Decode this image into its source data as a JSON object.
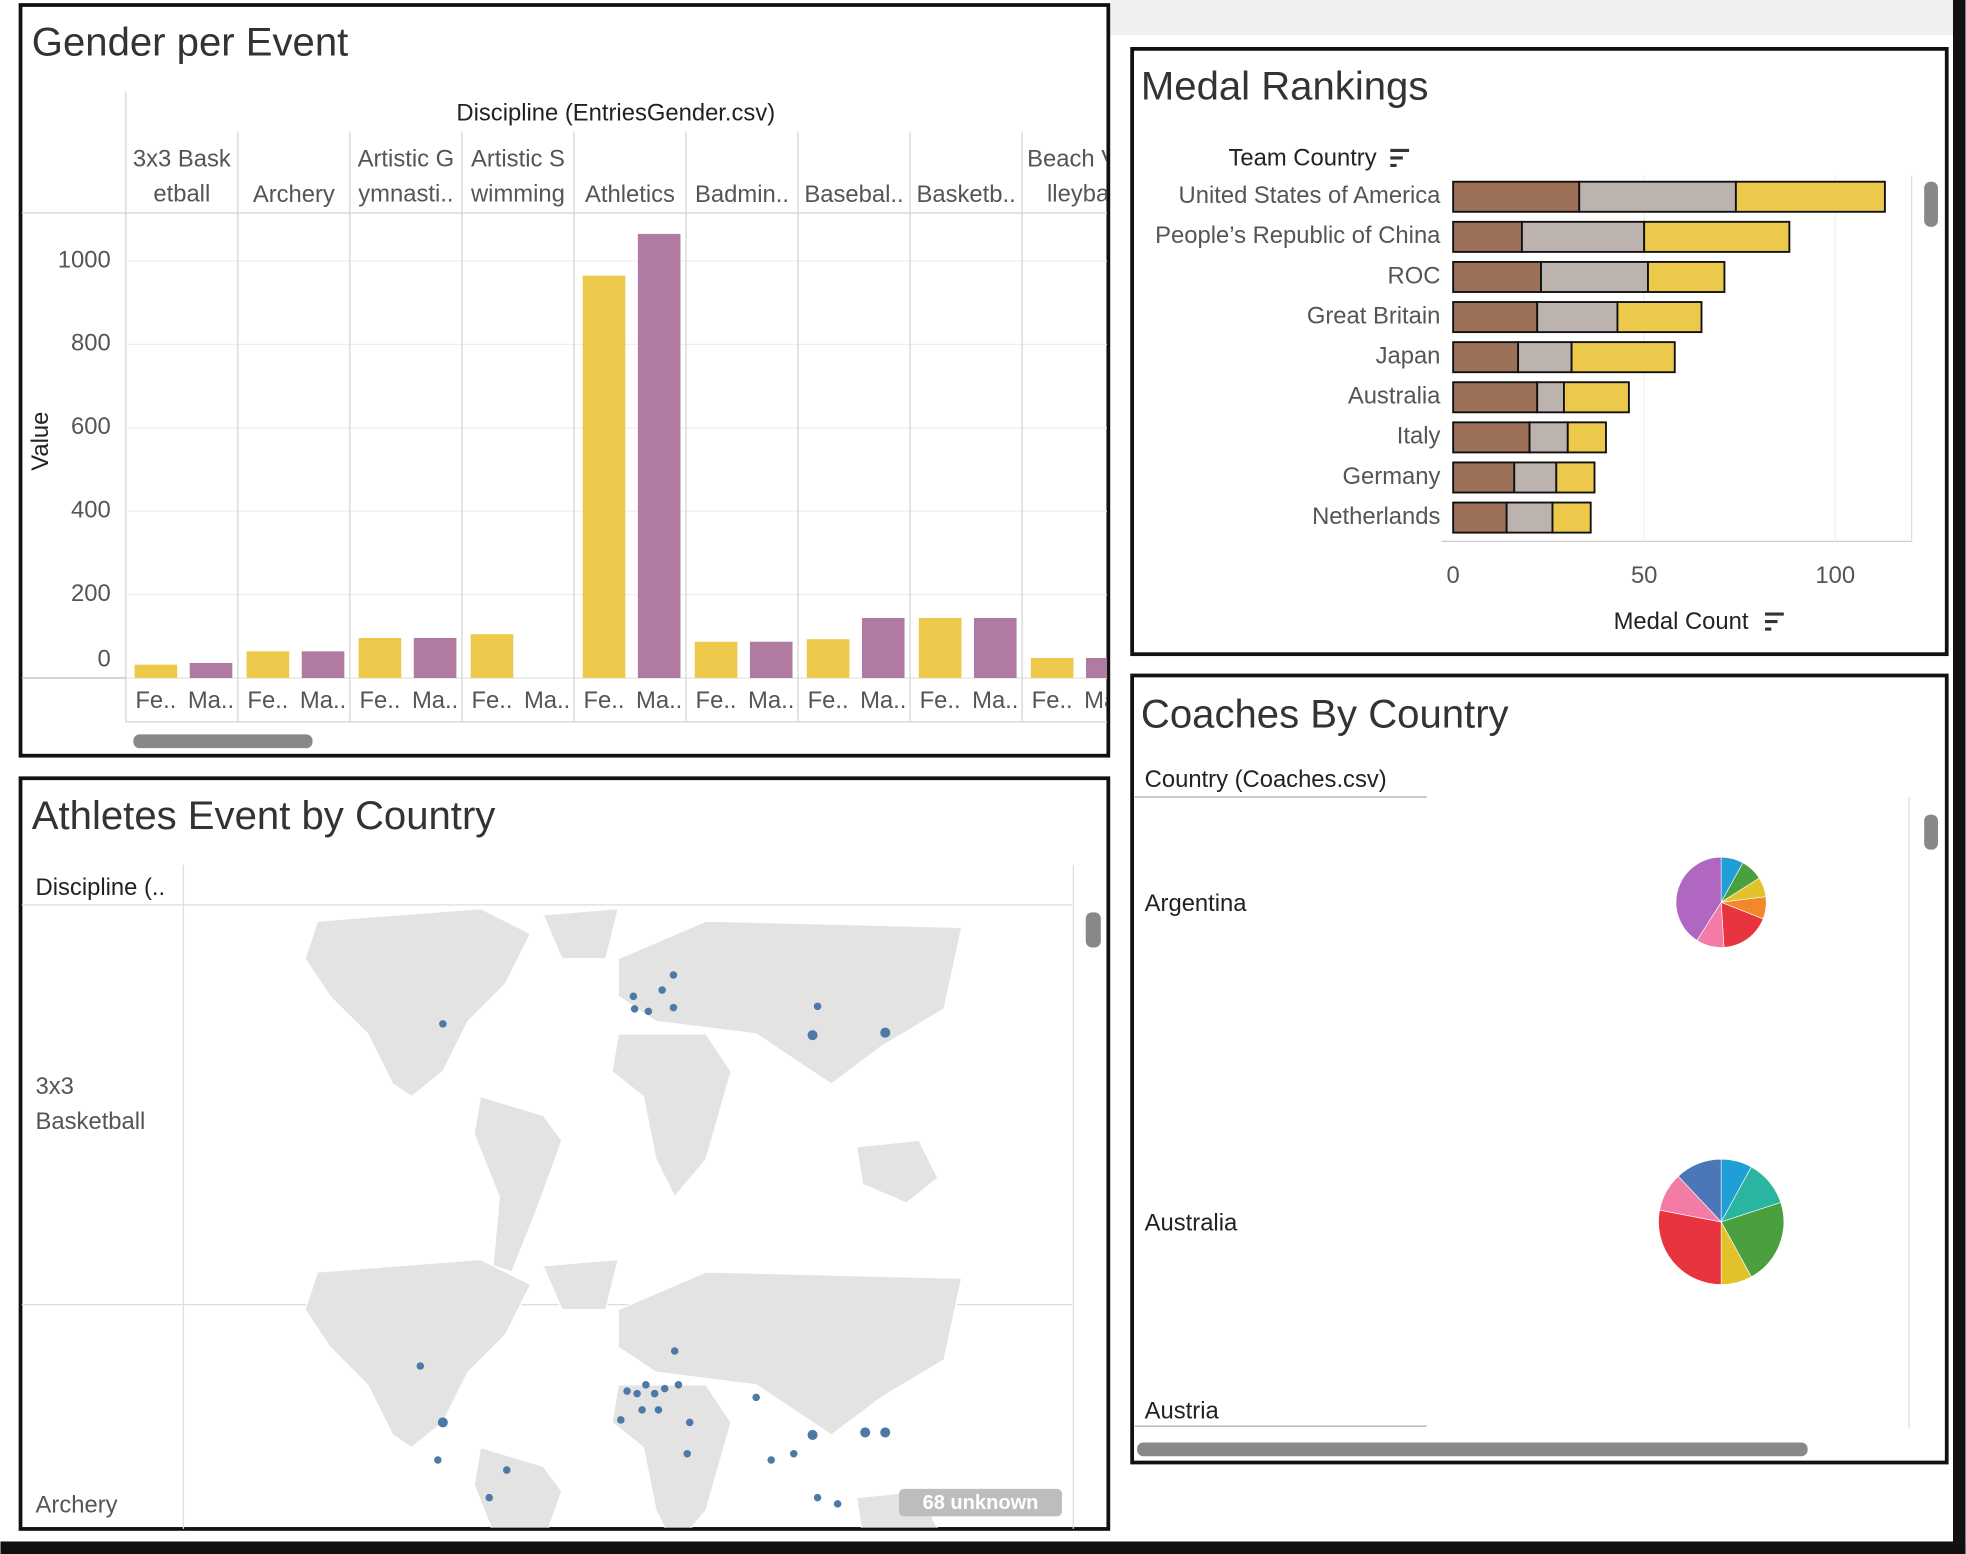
{
  "chart_data": [
    {
      "type": "bar",
      "title": "Gender per Event",
      "header": "Discipline (EntriesGender.csv)",
      "y_label": "Value",
      "categories": [
        "3x3 Basketball",
        "Archery",
        "Artistic Gymnasti..",
        "Artistic Swimming",
        "Athletics",
        "Badmin..",
        "Basebal..",
        "Basketb..",
        "Beach Volleyba"
      ],
      "series": [
        {
          "name": "Fe..",
          "color": "#ecc94b",
          "values": [
            32,
            64,
            96,
            105,
            965,
            87,
            93,
            144,
            48
          ]
        },
        {
          "name": "Ma..",
          "color": "#b07aa1",
          "values": [
            36,
            64,
            96,
            null,
            1065,
            87,
            144,
            144,
            48
          ]
        }
      ],
      "ylim": [
        0,
        1115
      ],
      "yticks": [
        0,
        200,
        400,
        600,
        800,
        1000
      ],
      "grid": true
    },
    {
      "type": "hbar_stacked",
      "title": "Medal Rankings",
      "y_label": "Team Country",
      "x_label": "Medal Count",
      "categories": [
        "United States of America",
        "People’s Republic of China",
        "ROC",
        "Great Britain",
        "Japan",
        "Australia",
        "Italy",
        "Germany",
        "Netherlands"
      ],
      "series": [
        {
          "color": "#9c7158",
          "values": [
            33,
            18,
            23,
            22,
            17,
            22,
            20,
            16,
            14
          ]
        },
        {
          "color": "#bdb3ae",
          "values": [
            41,
            32,
            28,
            21,
            14,
            7,
            10,
            11,
            12
          ]
        },
        {
          "color": "#ecc94b",
          "values": [
            39,
            38,
            20,
            22,
            27,
            17,
            10,
            10,
            10
          ]
        }
      ],
      "xlim": [
        -3,
        120
      ],
      "xticks": [
        0,
        50,
        100
      ]
    },
    {
      "type": "map",
      "title": "Athletes Event by Country",
      "header": "Discipline (..",
      "rows": [
        "3x3 Basketball",
        "Archery"
      ],
      "annotation": "68 unknown"
    },
    {
      "type": "pie_grid",
      "title": "Coaches By Country",
      "header": "Country (Coaches.csv)",
      "rows": [
        {
          "label": "Argentina",
          "values": [
            8,
            8,
            7,
            8,
            18,
            10,
            41
          ],
          "colors": [
            "#1f9fd6",
            "#4aa03f",
            "#e2c22a",
            "#f2882a",
            "#e8343f",
            "#f47ba6",
            "#b067c2"
          ]
        },
        {
          "label": "Australia",
          "values": [
            8,
            12,
            22,
            8,
            28,
            10,
            12
          ],
          "colors": [
            "#1f9fd6",
            "#2ab5a0",
            "#4aa03f",
            "#e2c22a",
            "#e8343f",
            "#f47ba6",
            "#4b77b8"
          ]
        },
        {
          "label": "Austria",
          "values": [],
          "colors": []
        }
      ]
    }
  ]
}
